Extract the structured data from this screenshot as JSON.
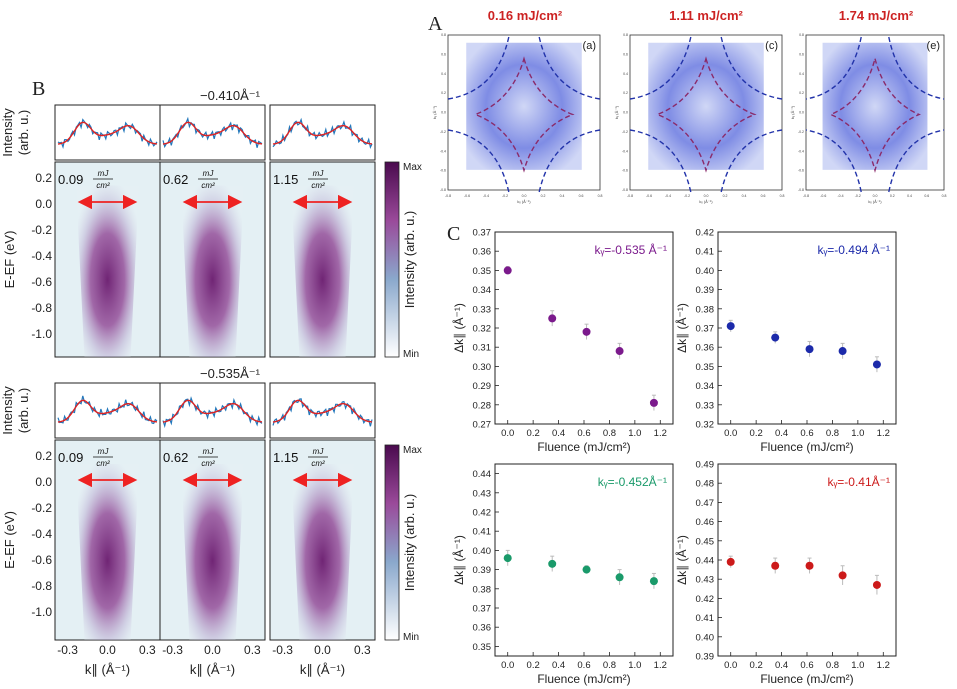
{
  "panels": {
    "A": {
      "label": "A",
      "fluence_titles": [
        "0.16 mJ/cm²",
        "1.11 mJ/cm²",
        "1.74 mJ/cm²"
      ],
      "subpanel_labels": [
        "(a)",
        "(c)",
        "(e)"
      ],
      "x_axis_label": "kₓ (Å⁻¹)",
      "y_axis_label": "kᵧ (Å⁻¹)",
      "x_ticks": [
        "-0.8",
        "-0.6",
        "-0.4",
        "-0.2",
        "0.0",
        "0.2",
        "0.4",
        "0.6",
        "0.8"
      ],
      "y_ticks": [
        "0.8",
        "0.6",
        "0.4",
        "0.2",
        "0.0",
        "-0.2",
        "-0.4",
        "-0.6",
        "-0.8"
      ],
      "colors": {
        "map": "#3a4fd6",
        "contour_dark": "#2233aa",
        "contour_red": "#8a2a6a"
      }
    },
    "B": {
      "label": "B",
      "rows": [
        {
          "momentum_label": "−0.410Å⁻¹",
          "fluences": [
            "0.09",
            "0.62",
            "1.15"
          ]
        },
        {
          "momentum_label": "−0.535Å⁻¹",
          "fluences": [
            "0.09",
            "0.62",
            "1.15"
          ]
        }
      ],
      "fluence_unit_num": "mJ",
      "fluence_unit_den": "cm²",
      "edc_ylabel_1": "Intensity",
      "edc_ylabel_2": "(arb. u.)",
      "map_ylabel": "E-EF (eV)",
      "y_ticks": [
        "0.2",
        "0.0",
        "-0.2",
        "-0.4",
        "-0.6",
        "-0.8",
        "-1.0"
      ],
      "x_ticks": [
        "-0.3",
        "0.0",
        "0.3"
      ],
      "x_axis_label": "k∥ (Å⁻¹)",
      "colorbar_max": "Max",
      "colorbar_min": "Min",
      "colorbar_label": "Intensity (arb. u.)",
      "colors": {
        "map": "#6a1a6e",
        "edc_data": "#2277bb",
        "edc_fit": "#dd2222",
        "arrow": "#ee2222"
      }
    },
    "C": {
      "label": "C",
      "x_axis_label": "Fluence (mJ/cm²)",
      "y_axis_label": "Δk∥ (Å⁻¹)"
    }
  },
  "chart_data": [
    {
      "type": "scatter",
      "title": "kᵧ=-0.535 Å⁻¹",
      "color": "#7b1a8c",
      "x": [
        0.0,
        0.35,
        0.62,
        0.88,
        1.15
      ],
      "y": [
        0.35,
        0.325,
        0.318,
        0.308,
        0.281
      ],
      "yerr": [
        0.002,
        0.004,
        0.004,
        0.004,
        0.004
      ],
      "xlim": [
        -0.1,
        1.3
      ],
      "ylim": [
        0.27,
        0.37
      ],
      "xticks": [
        "0.0",
        "0.2",
        "0.4",
        "0.6",
        "0.8",
        "1.0",
        "1.2"
      ],
      "yticks": [
        "0.27",
        "0.28",
        "0.29",
        "0.30",
        "0.31",
        "0.32",
        "0.33",
        "0.34",
        "0.35",
        "0.36",
        "0.37"
      ]
    },
    {
      "type": "scatter",
      "title": "kᵧ=-0.494 Å⁻¹",
      "color": "#1c2aaa",
      "x": [
        0.0,
        0.35,
        0.62,
        0.88,
        1.15
      ],
      "y": [
        0.371,
        0.365,
        0.359,
        0.358,
        0.351
      ],
      "yerr": [
        0.003,
        0.003,
        0.004,
        0.004,
        0.004
      ],
      "xlim": [
        -0.1,
        1.3
      ],
      "ylim": [
        0.32,
        0.42
      ],
      "xticks": [
        "0.0",
        "0.2",
        "0.4",
        "0.6",
        "0.8",
        "1.0",
        "1.2"
      ],
      "yticks": [
        "0.32",
        "0.33",
        "0.34",
        "0.35",
        "0.36",
        "0.37",
        "0.38",
        "0.39",
        "0.40",
        "0.41",
        "0.42"
      ]
    },
    {
      "type": "scatter",
      "title": "kᵧ=-0.452Å⁻¹",
      "color": "#1a9a6a",
      "x": [
        0.0,
        0.35,
        0.62,
        0.88,
        1.15
      ],
      "y": [
        0.396,
        0.393,
        0.39,
        0.386,
        0.384
      ],
      "yerr": [
        0.004,
        0.004,
        0.002,
        0.004,
        0.004
      ],
      "xlim": [
        -0.1,
        1.3
      ],
      "ylim": [
        0.345,
        0.445
      ],
      "xticks": [
        "0.0",
        "0.2",
        "0.4",
        "0.6",
        "0.8",
        "1.0",
        "1.2"
      ],
      "yticks": [
        "0.35",
        "0.36",
        "0.37",
        "0.38",
        "0.39",
        "0.40",
        "0.41",
        "0.42",
        "0.43",
        "0.44"
      ]
    },
    {
      "type": "scatter",
      "title": "kᵧ=-0.41Å⁻¹",
      "color": "#cc1a1a",
      "x": [
        0.0,
        0.35,
        0.62,
        0.88,
        1.15
      ],
      "y": [
        0.439,
        0.437,
        0.437,
        0.432,
        0.427
      ],
      "yerr": [
        0.003,
        0.004,
        0.004,
        0.005,
        0.005
      ],
      "xlim": [
        -0.1,
        1.3
      ],
      "ylim": [
        0.39,
        0.49
      ],
      "xticks": [
        "0.0",
        "0.2",
        "0.4",
        "0.6",
        "0.8",
        "1.0",
        "1.2"
      ],
      "yticks": [
        "0.39",
        "0.40",
        "0.41",
        "0.42",
        "0.43",
        "0.44",
        "0.45",
        "0.46",
        "0.47",
        "0.48",
        "0.49"
      ]
    }
  ]
}
